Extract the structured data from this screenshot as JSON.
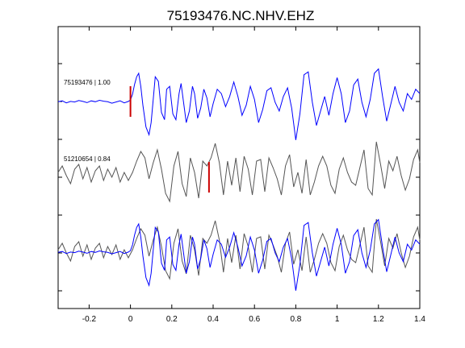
{
  "chart_data": {
    "type": "line",
    "title": "75193476.NC.NHV.EHZ",
    "xlabel": "",
    "ylabel": "",
    "xlim": [
      -0.35,
      1.4
    ],
    "x_ticks": [
      -0.2,
      0,
      0.2,
      0.4,
      0.6,
      0.8,
      1,
      1.2,
      1.4
    ],
    "x_tick_labels": [
      "-0.2",
      "0",
      "0.2",
      "0.4",
      "0.6",
      "0.8",
      "1",
      "1.2",
      "1.4"
    ],
    "grid": false,
    "trace_labels": [
      "75193476 | 1.00",
      "51210654 | 0.84"
    ],
    "pick_markers": [
      0.0,
      0.38
    ],
    "colors": {
      "reference": "#0000ff",
      "match": "#555555",
      "pick": "#cc0000",
      "axes": "#000000"
    },
    "series": [
      {
        "trace": "reference",
        "x": [
          -0.35,
          -0.33,
          -0.31,
          -0.29,
          -0.27,
          -0.25,
          -0.23,
          -0.21,
          -0.19,
          -0.17,
          -0.15,
          -0.13,
          -0.11,
          -0.09,
          -0.07,
          -0.05,
          -0.03,
          -0.01,
          0.0,
          0.01,
          0.02,
          0.03,
          0.04,
          0.05,
          0.06,
          0.075,
          0.09,
          0.1,
          0.11,
          0.12,
          0.135,
          0.15,
          0.165,
          0.175,
          0.19,
          0.205,
          0.22,
          0.235,
          0.245,
          0.255,
          0.27,
          0.285,
          0.3,
          0.31,
          0.325,
          0.34,
          0.355,
          0.37,
          0.385,
          0.4,
          0.42,
          0.44,
          0.46,
          0.48,
          0.5,
          0.52,
          0.54,
          0.56,
          0.58,
          0.6,
          0.62,
          0.64,
          0.66,
          0.68,
          0.7,
          0.72,
          0.74,
          0.76,
          0.78,
          0.8,
          0.82,
          0.84,
          0.86,
          0.88,
          0.9,
          0.92,
          0.94,
          0.96,
          0.98,
          1.0,
          1.02,
          1.04,
          1.06,
          1.08,
          1.1,
          1.12,
          1.14,
          1.16,
          1.18,
          1.2,
          1.22,
          1.24,
          1.26,
          1.28,
          1.3,
          1.32,
          1.34,
          1.36,
          1.38,
          1.4
        ],
        "y": [
          0.02,
          0.05,
          -0.02,
          0.03,
          0.01,
          0.06,
          0.03,
          -0.01,
          0.05,
          0.02,
          0.07,
          0.04,
          0.02,
          -0.03,
          0.01,
          0.05,
          -0.02,
          0.03,
          0.08,
          0.28,
          0.62,
          0.88,
          1.0,
          0.55,
          -0.1,
          -0.85,
          -1.12,
          -0.7,
          0.1,
          0.88,
          0.72,
          -0.35,
          -0.6,
          0.45,
          0.55,
          -0.4,
          -0.6,
          0.3,
          0.65,
          0.1,
          -0.7,
          -0.3,
          0.55,
          0.3,
          -0.55,
          -0.2,
          0.45,
          0.15,
          -0.5,
          -0.05,
          0.45,
          0.3,
          -0.15,
          0.2,
          0.7,
          0.2,
          -0.45,
          -0.1,
          0.55,
          0.1,
          -0.7,
          -0.25,
          0.4,
          0.5,
          0.0,
          -0.3,
          0.2,
          0.5,
          -0.2,
          -1.3,
          -0.4,
          0.95,
          1.05,
          0.0,
          -0.8,
          -0.3,
          0.2,
          -0.45,
          0.3,
          0.85,
          0.3,
          -0.7,
          -0.3,
          0.6,
          0.8,
          0.0,
          -0.5,
          0.1,
          1.0,
          1.15,
          0.2,
          -0.65,
          -0.05,
          0.55,
          0.0,
          -0.3,
          0.3,
          0.1,
          0.45,
          0.3
        ]
      },
      {
        "trace": "match",
        "x": [
          -0.35,
          -0.33,
          -0.31,
          -0.29,
          -0.27,
          -0.25,
          -0.23,
          -0.21,
          -0.19,
          -0.17,
          -0.15,
          -0.13,
          -0.11,
          -0.09,
          -0.07,
          -0.05,
          -0.03,
          -0.01,
          0.01,
          0.03,
          0.05,
          0.07,
          0.09,
          0.11,
          0.13,
          0.15,
          0.17,
          0.19,
          0.21,
          0.23,
          0.25,
          0.27,
          0.29,
          0.31,
          0.33,
          0.35,
          0.37,
          0.39,
          0.41,
          0.43,
          0.45,
          0.47,
          0.49,
          0.51,
          0.53,
          0.55,
          0.57,
          0.59,
          0.61,
          0.63,
          0.65,
          0.67,
          0.69,
          0.71,
          0.73,
          0.75,
          0.77,
          0.79,
          0.81,
          0.83,
          0.85,
          0.87,
          0.89,
          0.91,
          0.93,
          0.95,
          0.97,
          0.99,
          1.01,
          1.03,
          1.05,
          1.07,
          1.09,
          1.11,
          1.13,
          1.15,
          1.17,
          1.19,
          1.21,
          1.23,
          1.25,
          1.27,
          1.29,
          1.31,
          1.33,
          1.35,
          1.37,
          1.39,
          1.4
        ],
        "y": [
          0.1,
          0.3,
          0.0,
          -0.25,
          0.2,
          0.35,
          -0.1,
          0.25,
          -0.2,
          0.15,
          0.3,
          -0.15,
          0.2,
          -0.05,
          0.25,
          -0.2,
          0.1,
          -0.15,
          0.1,
          0.45,
          0.75,
          0.55,
          -0.1,
          0.4,
          0.8,
          0.2,
          -0.55,
          -0.8,
          0.3,
          0.75,
          -0.25,
          -0.65,
          0.55,
          0.1,
          -0.7,
          0.45,
          0.3,
          0.55,
          1.0,
          0.4,
          -0.6,
          0.45,
          -0.3,
          0.55,
          -0.5,
          0.6,
          0.2,
          -0.6,
          0.45,
          0.5,
          -0.5,
          0.55,
          0.25,
          -0.1,
          -0.6,
          0.3,
          0.65,
          -0.35,
          0.1,
          -0.55,
          0.5,
          -0.6,
          -0.2,
          0.3,
          0.6,
          0.3,
          -0.3,
          -0.55,
          0.2,
          0.55,
          0.1,
          -0.2,
          -0.3,
          0.25,
          0.8,
          -0.4,
          -0.6,
          1.05,
          0.35,
          -0.4,
          0.45,
          0.15,
          0.6,
          0.0,
          -0.45,
          -0.1,
          0.5,
          0.8,
          0.4
        ]
      }
    ]
  }
}
